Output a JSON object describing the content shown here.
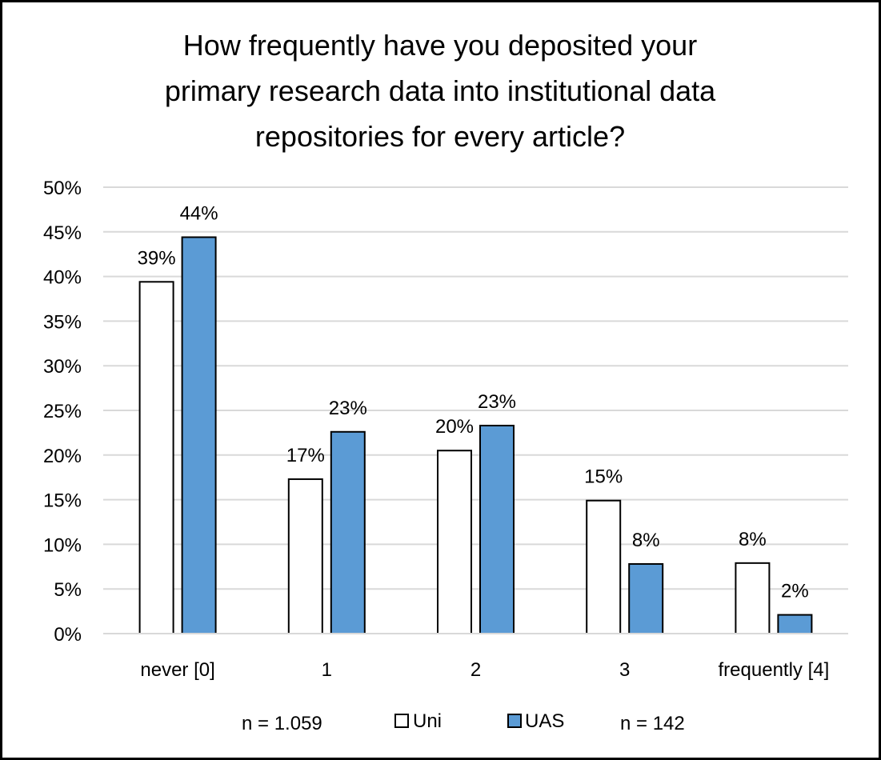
{
  "chart_data": {
    "type": "bar",
    "title": "How frequently have you deposited your primary research data into institutional data repositories for every article?",
    "title_lines": [
      "How frequently have you deposited your",
      "primary research data into institutional data",
      "repositories for every article?"
    ],
    "categories": [
      "never [0]",
      "1",
      "2",
      "3",
      "frequently [4]"
    ],
    "series": [
      {
        "name": "Uni",
        "values": [
          39.4,
          17.3,
          20.5,
          14.9,
          7.9
        ],
        "labels": [
          "39%",
          "17%",
          "20%",
          "15%",
          "8%"
        ],
        "color": "#ffffff"
      },
      {
        "name": "UAS",
        "values": [
          44.4,
          22.6,
          23.3,
          7.8,
          2.1
        ],
        "labels": [
          "44%",
          "23%",
          "23%",
          "8%",
          "2%"
        ],
        "color": "#5b9bd5"
      }
    ],
    "ylim": [
      0,
      50
    ],
    "yticks": [
      0,
      5,
      10,
      15,
      20,
      25,
      30,
      35,
      40,
      45,
      50
    ],
    "ytick_labels": [
      "0%",
      "5%",
      "10%",
      "15%",
      "20%",
      "25%",
      "30%",
      "35%",
      "40%",
      "45%",
      "50%"
    ],
    "grid": true,
    "legend_position": "bottom",
    "sample_sizes": [
      "n = 1.059",
      "n = 142"
    ],
    "xlabel": "",
    "ylabel": ""
  }
}
